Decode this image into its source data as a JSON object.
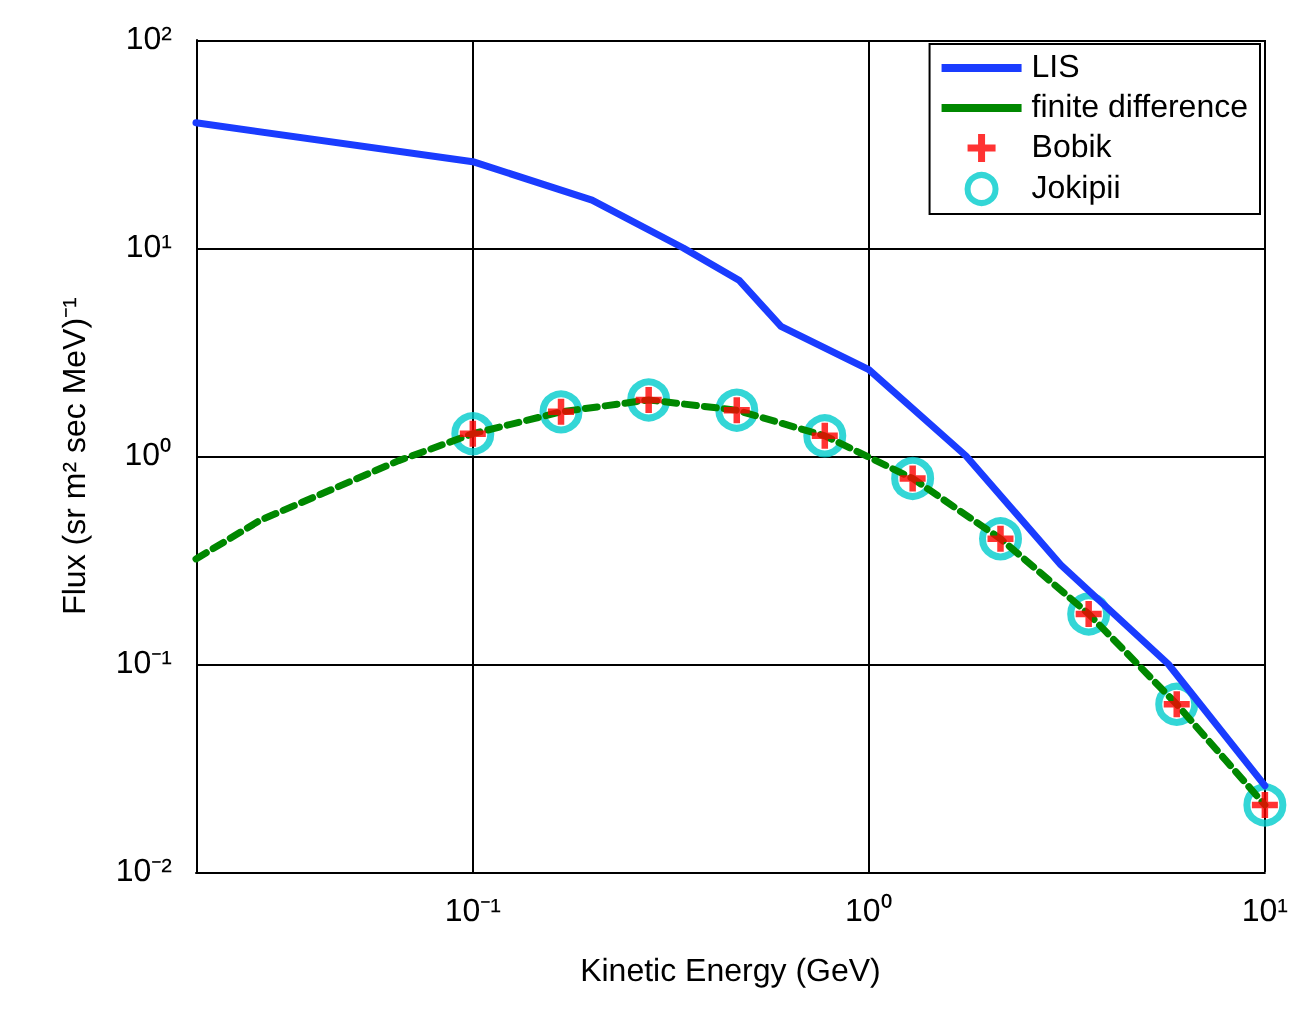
{
  "chart_data": {
    "type": "line",
    "xlabel": "Kinetic Energy (GeV)",
    "ylabel": "Flux (sr m² sec MeV)⁻¹",
    "log": "xy",
    "grid": true,
    "legend": "top right",
    "xlim": [
      0.02,
      10
    ],
    "xticks": [
      {
        "value": 0.1,
        "label": "10⁻¹"
      },
      {
        "value": 1,
        "label": "10⁰"
      },
      {
        "value": 10,
        "label": "10¹"
      }
    ],
    "ylim": [
      0.01,
      100
    ],
    "yticks": [
      {
        "value": 0.01,
        "label": "10⁻²"
      },
      {
        "value": 0.1,
        "label": "10⁻¹"
      },
      {
        "value": 1,
        "label": "10⁰"
      },
      {
        "value": 10,
        "label": "10¹"
      },
      {
        "value": 100,
        "label": "10²"
      }
    ],
    "series": [
      {
        "name": "LIS",
        "color": "#1a3cff",
        "marker": "none",
        "line_style": "solid",
        "x": [
          0.02,
          0.1,
          0.2,
          0.34,
          0.47,
          0.6,
          1,
          1.76,
          3.05,
          5.7,
          10
        ],
        "values": [
          40,
          26,
          17,
          10,
          7,
          4.2,
          2.6,
          1,
          0.3,
          0.1,
          0.026
        ]
      },
      {
        "name": "finite difference",
        "color": "#008800",
        "marker": "none",
        "line_style": "dashed",
        "x": [
          0.02,
          0.029,
          0.065,
          0.1,
          0.167,
          0.278,
          0.464,
          0.774,
          1.29,
          2.15,
          3.59,
          5.99,
          10
        ],
        "values": [
          0.32,
          0.49,
          0.95,
          1.28,
          1.63,
          1.86,
          1.66,
          1.25,
          0.78,
          0.4,
          0.174,
          0.064,
          0.021
        ]
      },
      {
        "name": "Bobik",
        "type": "scatter",
        "color": "#ff0000",
        "marker": "cross",
        "x": [
          0.1,
          0.167,
          0.278,
          0.464,
          0.774,
          1.29,
          2.15,
          3.59,
          5.99,
          10
        ],
        "values": [
          1.28,
          1.63,
          1.86,
          1.66,
          1.25,
          0.78,
          0.4,
          0.174,
          0.064,
          0.021
        ]
      },
      {
        "name": "Jokipii",
        "type": "scatter",
        "color": "#00cccc",
        "marker": "circle",
        "x": [
          0.1,
          0.167,
          0.278,
          0.464,
          0.774,
          1.29,
          2.15,
          3.59,
          5.99,
          10
        ],
        "values": [
          1.28,
          1.63,
          1.86,
          1.66,
          1.25,
          0.78,
          0.4,
          0.174,
          0.064,
          0.021
        ]
      }
    ]
  }
}
